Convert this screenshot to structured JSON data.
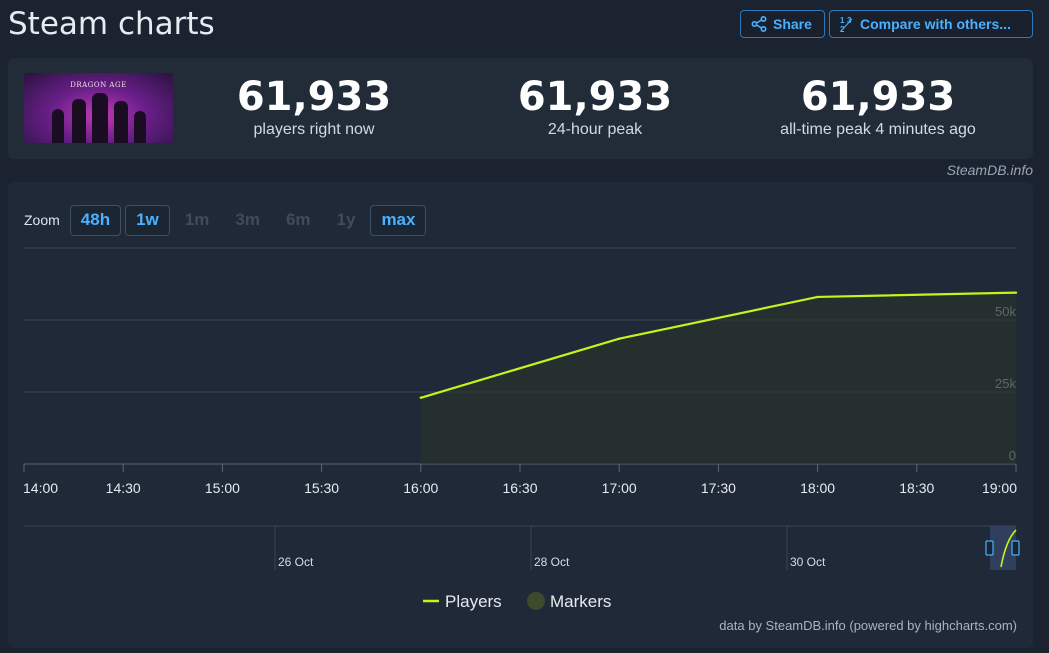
{
  "page": {
    "title": "Steam charts"
  },
  "actions": {
    "share_label": "Share",
    "compare_label": "Compare with others..."
  },
  "game": {
    "image_alt": "Dragon Age: The Veilguard",
    "logo_text": "DRAGON AGE"
  },
  "stats": [
    {
      "value": "61,933",
      "label": "players right now"
    },
    {
      "value": "61,933",
      "label": "24-hour peak"
    },
    {
      "value": "61,933",
      "label": "all-time peak 4 minutes ago"
    }
  ],
  "credit": "SteamDB.info",
  "zoom": {
    "label": "Zoom",
    "options": [
      {
        "label": "48h",
        "active": true
      },
      {
        "label": "1w",
        "active": true
      },
      {
        "label": "1m",
        "active": false
      },
      {
        "label": "3m",
        "active": false
      },
      {
        "label": "6m",
        "active": false
      },
      {
        "label": "1y",
        "active": false
      },
      {
        "label": "max",
        "active": true
      }
    ]
  },
  "chart_data": {
    "type": "line",
    "title": "",
    "xlabel": "",
    "ylabel": "",
    "x_ticks": [
      "14:00",
      "14:30",
      "15:00",
      "15:30",
      "16:00",
      "16:30",
      "17:00",
      "17:30",
      "18:00",
      "18:30",
      "19:00"
    ],
    "y_ticks": [
      "0",
      "25k",
      "50k"
    ],
    "ylim": [
      0,
      75000
    ],
    "xlim": [
      "14:00",
      "19:00"
    ],
    "series": [
      {
        "name": "Players",
        "color": "#c3f41d",
        "x": [
          "16:00",
          "17:00",
          "18:00",
          "19:00"
        ],
        "y": [
          23000,
          43500,
          58000,
          59500
        ]
      }
    ],
    "navigator": {
      "labels": [
        "26 Oct",
        "28 Oct",
        "30 Oct"
      ]
    },
    "legend": {
      "position": "bottom-center",
      "items": [
        {
          "label": "Players",
          "color": "#c3f41d"
        },
        {
          "label": "Markers",
          "color": "#3d4a2c"
        }
      ]
    },
    "grid": true
  },
  "footer_credit": "data by SteamDB.info (powered by highcharts.com)",
  "colors": {
    "accent": "#4ab0ff",
    "series": "#c3f41d",
    "background": "#1b2230",
    "panel": "#222b38"
  }
}
